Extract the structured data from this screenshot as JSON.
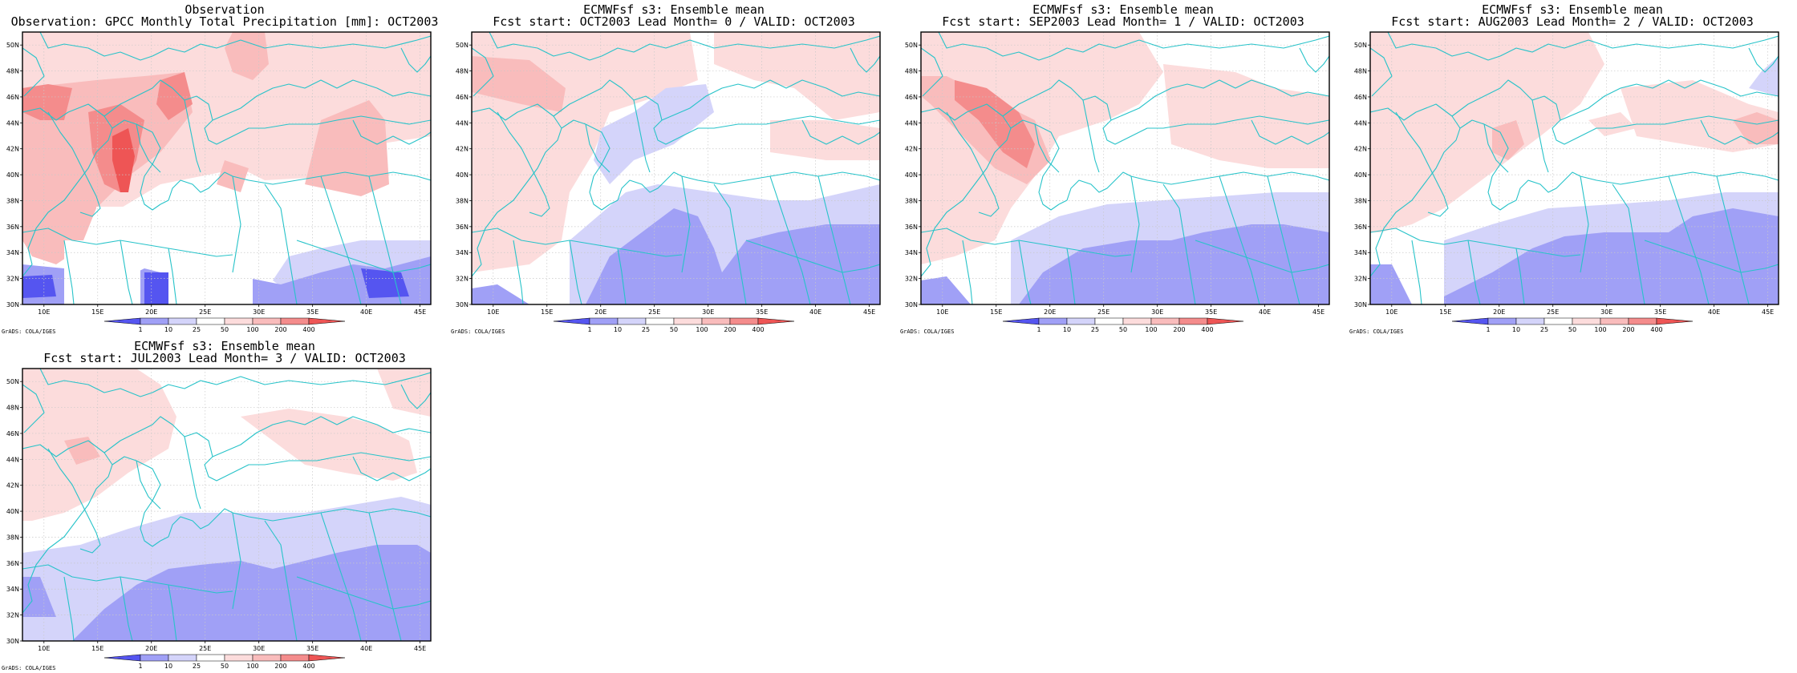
{
  "colors": {
    "neg_dark": "#5555f0",
    "neg_mid": "#a0a0f6",
    "neg_light": "#d4d4fa",
    "pos_light": "#fcdcdc",
    "pos_mid": "#f9bcbc",
    "pos_strong": "#f48c8c",
    "pos_dark": "#ee5555",
    "coast": "#27c3c9",
    "grid": "#c8c8c8"
  },
  "colorbar": {
    "labels": [
      "1",
      "10",
      "25",
      "50",
      "100",
      "200",
      "400"
    ],
    "credit": "GrADS: COLA/IGES"
  },
  "axes": {
    "lon_labels": [
      "10E",
      "15E",
      "20E",
      "25E",
      "30E",
      "35E",
      "40E",
      "45E"
    ],
    "lat_labels": [
      "30N",
      "32N",
      "34N",
      "36N",
      "38N",
      "40N",
      "42N",
      "44N",
      "46N",
      "48N",
      "50N"
    ],
    "lon_range": [
      8,
      46
    ],
    "lat_range": [
      30,
      51
    ]
  },
  "panels": [
    {
      "title1": "Observation",
      "title2": "Observation: GPCC Monthly Total Precipitation [mm]: OCT2003",
      "icon": "precipitation-anomaly-map-icon"
    },
    {
      "title1": "ECMWFsf s3: Ensemble mean",
      "title2": "Fcst start: OCT2003  Lead Month= 0 / VALID: OCT2003",
      "icon": "precipitation-anomaly-map-icon"
    },
    {
      "title1": "ECMWFsf s3: Ensemble mean",
      "title2": "Fcst start: SEP2003  Lead Month= 1 / VALID: OCT2003",
      "icon": "precipitation-anomaly-map-icon"
    },
    {
      "title1": "ECMWFsf s3: Ensemble mean",
      "title2": "Fcst start: AUG2003  Lead Month= 2 / VALID: OCT2003",
      "icon": "precipitation-anomaly-map-icon"
    },
    {
      "title1": "ECMWFsf s3: Ensemble mean",
      "title2": "Fcst start: JUL2003  Lead Month= 3 / VALID: OCT2003",
      "icon": "precipitation-anomaly-map-icon"
    }
  ]
}
